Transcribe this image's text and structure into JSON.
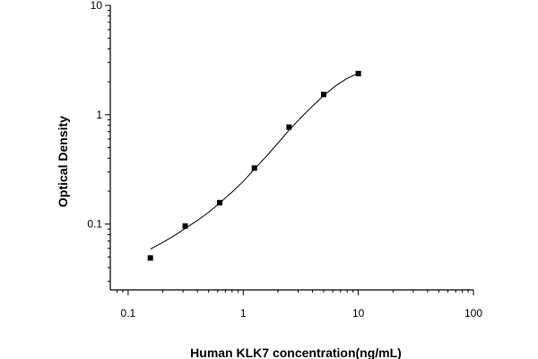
{
  "chart_data": {
    "type": "scatter",
    "title": "",
    "xlabel": "Human KLK7 concentration(ng/mL)",
    "ylabel": "Optical Density",
    "x_scale": "log",
    "y_scale": "log",
    "xlim": [
      0.07,
      100
    ],
    "ylim": [
      0.025,
      10
    ],
    "x_ticks": [
      0.1,
      1,
      10,
      100
    ],
    "x_tick_labels": [
      "0.1",
      "1",
      "10",
      "100"
    ],
    "y_ticks": [
      0.1,
      1,
      10
    ],
    "y_tick_labels": [
      "0.1",
      "1",
      "10"
    ],
    "grid": false,
    "series": [
      {
        "kind": "points",
        "marker": "square",
        "x": [
          0.156,
          0.313,
          0.625,
          1.25,
          2.5,
          5,
          10
        ],
        "y": [
          0.049,
          0.096,
          0.157,
          0.325,
          0.77,
          1.53,
          2.38
        ]
      },
      {
        "kind": "fitted-curve",
        "x": [
          0.156,
          0.2,
          0.25,
          0.313,
          0.4,
          0.5,
          0.625,
          0.8,
          1.0,
          1.25,
          1.6,
          2.0,
          2.5,
          3.2,
          4.0,
          5.0,
          6.4,
          8.0,
          10
        ],
        "y": [
          0.059,
          0.068,
          0.078,
          0.091,
          0.108,
          0.128,
          0.156,
          0.196,
          0.245,
          0.318,
          0.42,
          0.55,
          0.72,
          0.95,
          1.2,
          1.5,
          1.85,
          2.15,
          2.4
        ]
      }
    ],
    "colors": {
      "axes": "#000000",
      "points": "#000000",
      "curve": "#000000"
    }
  }
}
